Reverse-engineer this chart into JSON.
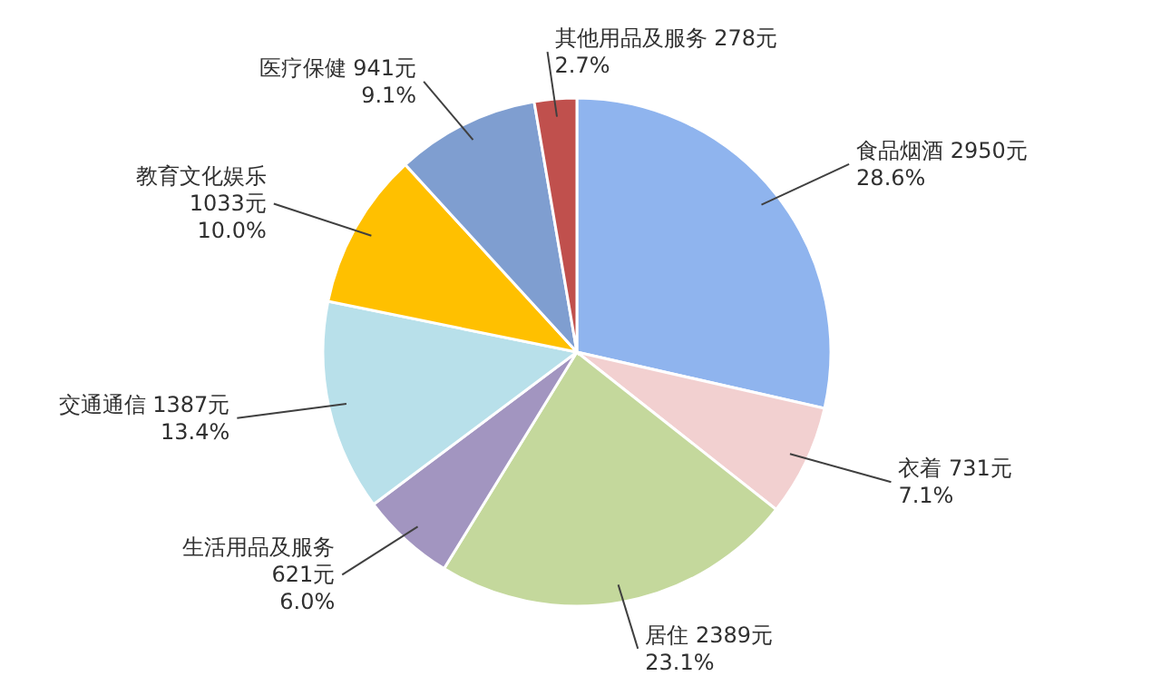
{
  "chart_data": {
    "type": "pie",
    "categories": [
      "食品烟酒",
      "衣着",
      "居住",
      "生活用品及服务",
      "交通通信",
      "教育文化娱乐",
      "医疗保健",
      "其他用品及服务"
    ],
    "values": [
      2950,
      731,
      2389,
      621,
      1387,
      1033,
      941,
      278
    ],
    "colors": [
      "#8fb4ee",
      "#f2d0d0",
      "#c4d89c",
      "#a295c0",
      "#b8e0ea",
      "#ffc000",
      "#7f9ed0",
      "#c0504d"
    ],
    "value_labels": [
      "2950元\n28.6%",
      "731元\n7.1%",
      "2389元\n23.1%",
      "621元\n6.0%",
      "1387元\n13.4%",
      "1033元\n10.0%",
      "941元\n9.1%",
      "278元\n2.7%"
    ]
  }
}
